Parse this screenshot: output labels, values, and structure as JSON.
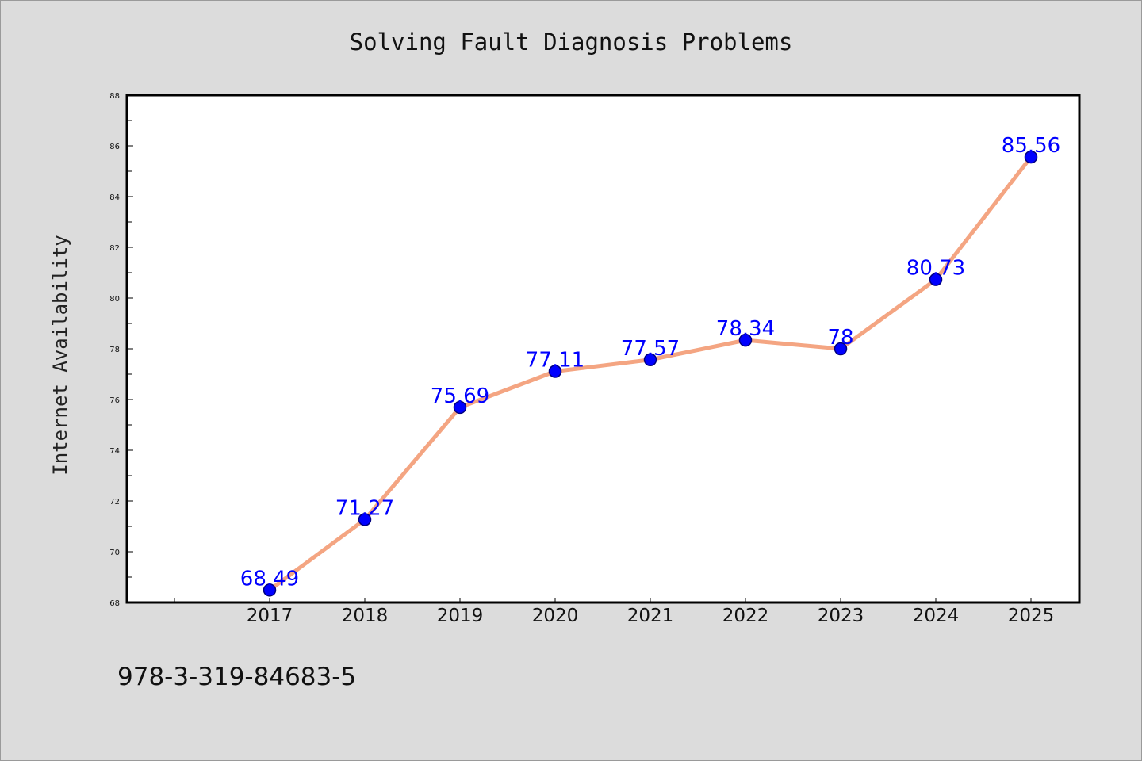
{
  "chart_data": {
    "type": "line",
    "title": "Solving Fault Diagnosis Problems",
    "xlabel": "",
    "ylabel": "Internet Availability",
    "x": [
      "2017",
      "2018",
      "2019",
      "2020",
      "2021",
      "2022",
      "2023",
      "2024",
      "2025"
    ],
    "series": [
      {
        "values": [
          68.49,
          71.27,
          75.69,
          77.11,
          77.57,
          78.34,
          78,
          80.73,
          85.56
        ],
        "labels": [
          "68.49",
          "71.27",
          "75.69",
          "77.11",
          "77.57",
          "78.34",
          "78",
          "80.73",
          "85.56"
        ]
      }
    ],
    "ylim": [
      68,
      88
    ],
    "yticks": [
      "68",
      "70",
      "72",
      "74",
      "76",
      "78",
      "80",
      "82",
      "84",
      "86",
      "88"
    ],
    "grid": false,
    "legend": "none",
    "colors": {
      "line": "#f4a582",
      "marker": "#0000ff",
      "marker_edge": "#00007f",
      "data_label": "#0000ff",
      "background": "#dcdcdc",
      "plot_background": "#ffffff"
    }
  },
  "footnote": "978-3-319-84683-5"
}
